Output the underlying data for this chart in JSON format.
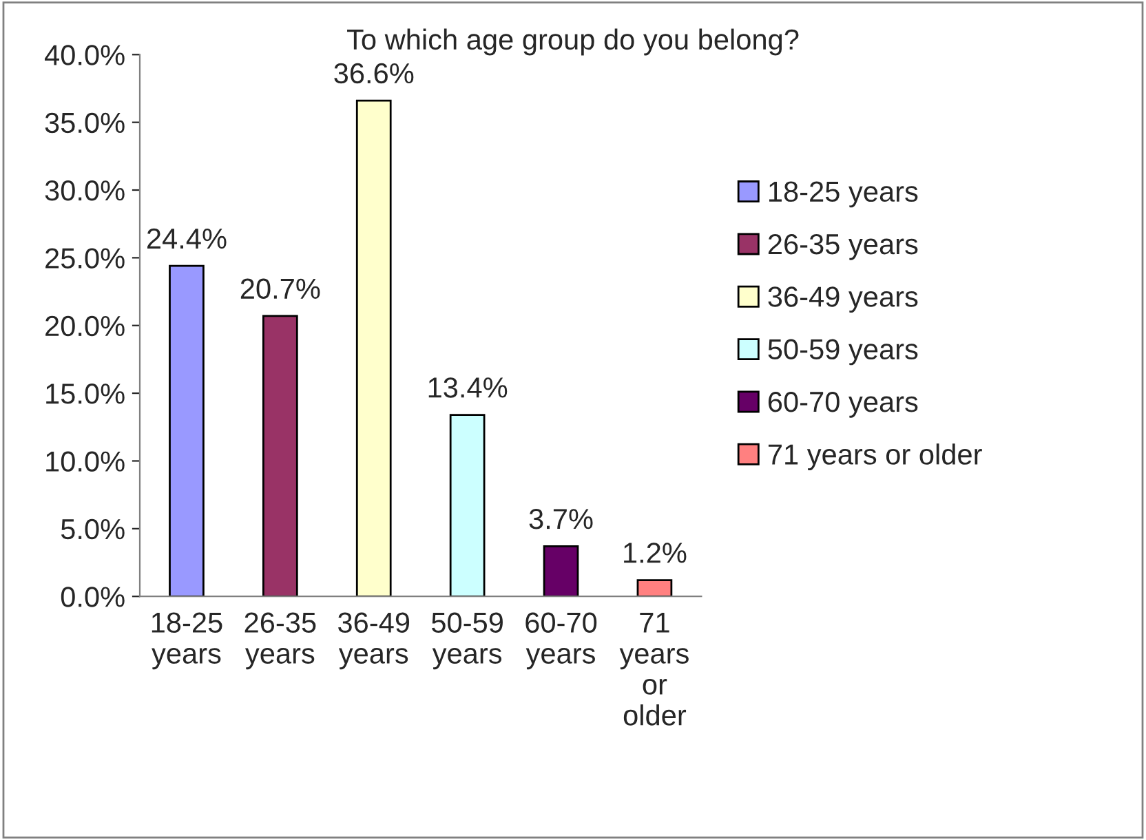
{
  "chart_data": {
    "type": "bar",
    "title": "To which age group do you belong?",
    "categories": [
      "18-25 years",
      "26-35 years",
      "36-49 years",
      "50-59 years",
      "60-70 years",
      "71 years or older"
    ],
    "series": [
      {
        "name": "18-25 years",
        "color": "#9999ff",
        "values": [
          24.4,
          null,
          null,
          null,
          null,
          null
        ],
        "value_labels": [
          "24.4%",
          null,
          null,
          null,
          null,
          null
        ]
      },
      {
        "name": "26-35 years",
        "color": "#993366",
        "values": [
          null,
          20.7,
          null,
          null,
          null,
          null
        ],
        "value_labels": [
          null,
          "20.7%",
          null,
          null,
          null,
          null
        ]
      },
      {
        "name": "36-49 years",
        "color": "#ffffcc",
        "values": [
          null,
          null,
          36.6,
          null,
          null,
          null
        ],
        "value_labels": [
          null,
          null,
          "36.6%",
          null,
          null,
          null
        ]
      },
      {
        "name": "50-59 years",
        "color": "#ccffff",
        "values": [
          null,
          null,
          null,
          13.4,
          null,
          null
        ],
        "value_labels": [
          null,
          null,
          null,
          "13.4%",
          null,
          null
        ]
      },
      {
        "name": "60-70 years",
        "color": "#660066",
        "values": [
          null,
          null,
          null,
          null,
          3.7,
          null
        ],
        "value_labels": [
          null,
          null,
          null,
          null,
          "3.7%",
          null
        ]
      },
      {
        "name": "71 years or older",
        "color": "#ff8080",
        "values": [
          null,
          null,
          null,
          null,
          null,
          1.2
        ],
        "value_labels": [
          null,
          null,
          null,
          null,
          null,
          "1.2%"
        ]
      }
    ],
    "ylim": [
      0,
      40
    ],
    "yticks": [
      {
        "value": 0,
        "label": "0.0%"
      },
      {
        "value": 5,
        "label": "5.0%"
      },
      {
        "value": 10,
        "label": "10.0%"
      },
      {
        "value": 15,
        "label": "15.0%"
      },
      {
        "value": 20,
        "label": "20.0%"
      },
      {
        "value": 25,
        "label": "25.0%"
      },
      {
        "value": 30,
        "label": "30.0%"
      },
      {
        "value": 35,
        "label": "35.0%"
      },
      {
        "value": 40,
        "label": "40.0%"
      }
    ],
    "grid": false,
    "legend": "right"
  }
}
